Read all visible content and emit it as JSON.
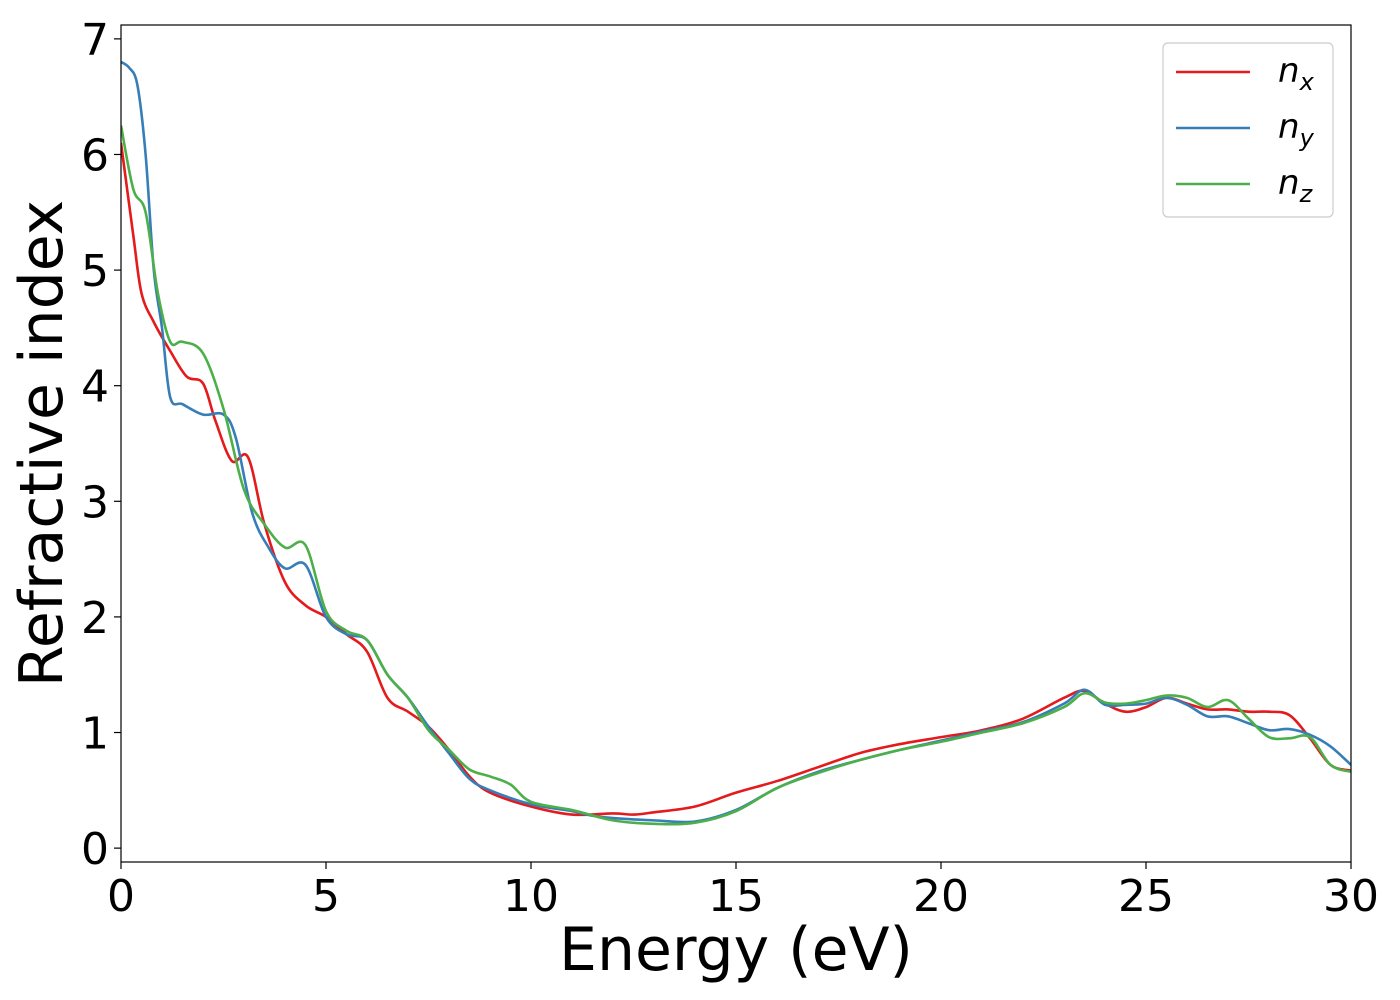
{
  "chart_data": {
    "type": "line",
    "xlabel": "Energy (eV)",
    "ylabel": "Refractive index",
    "xlim": [
      0,
      30
    ],
    "ylim": [
      -0.12,
      7.12
    ],
    "xticks": [
      0,
      5,
      10,
      15,
      20,
      25,
      30
    ],
    "yticks": [
      0,
      1,
      2,
      3,
      4,
      5,
      6,
      7
    ],
    "xtick_labels": [
      "0",
      "5",
      "10",
      "15",
      "20",
      "25",
      "30"
    ],
    "ytick_labels": [
      "0",
      "1",
      "2",
      "3",
      "4",
      "5",
      "6",
      "7"
    ],
    "grid": false,
    "legend_position": "top-right",
    "series": [
      {
        "name": "n_x",
        "label_base": "n",
        "label_sub": "x",
        "color": "#e41a1c",
        "x": [
          0,
          0.3,
          0.5,
          0.8,
          1.2,
          1.6,
          2.0,
          2.3,
          2.7,
          3.1,
          3.5,
          4.0,
          4.5,
          5.0,
          5.5,
          6.0,
          6.5,
          7.0,
          7.5,
          8.0,
          8.5,
          9.0,
          10.0,
          11.0,
          12.0,
          12.5,
          13.0,
          14.0,
          15.0,
          16.0,
          17.0,
          18.0,
          19.0,
          20.0,
          21.0,
          22.0,
          23.0,
          23.5,
          24.0,
          24.5,
          25.0,
          25.5,
          26.0,
          26.5,
          27.0,
          27.5,
          28.0,
          28.5,
          29.0,
          29.5,
          30.0
        ],
        "y": [
          6.1,
          5.3,
          4.8,
          4.55,
          4.3,
          4.08,
          4.02,
          3.7,
          3.35,
          3.38,
          2.8,
          2.3,
          2.1,
          2.0,
          1.85,
          1.7,
          1.3,
          1.18,
          1.05,
          0.85,
          0.62,
          0.48,
          0.36,
          0.29,
          0.3,
          0.29,
          0.31,
          0.36,
          0.48,
          0.58,
          0.7,
          0.82,
          0.9,
          0.96,
          1.02,
          1.12,
          1.3,
          1.36,
          1.25,
          1.18,
          1.22,
          1.3,
          1.25,
          1.2,
          1.2,
          1.18,
          1.18,
          1.15,
          0.95,
          0.72,
          0.67
        ]
      },
      {
        "name": "n_y",
        "label_base": "n",
        "label_sub": "y",
        "color": "#377eb8",
        "x": [
          0,
          0.2,
          0.4,
          0.6,
          0.8,
          1.0,
          1.2,
          1.5,
          2.0,
          2.5,
          2.8,
          3.2,
          3.6,
          4.0,
          4.5,
          5.0,
          5.5,
          6.0,
          6.5,
          7.0,
          7.5,
          8.0,
          8.5,
          9.0,
          10.0,
          11.0,
          11.5,
          12.0,
          13.0,
          14.0,
          15.0,
          16.0,
          17.0,
          18.0,
          19.0,
          20.0,
          21.0,
          22.0,
          23.0,
          23.5,
          24.0,
          24.5,
          25.0,
          25.5,
          26.0,
          26.5,
          27.0,
          27.5,
          28.0,
          28.5,
          29.0,
          29.5,
          30.0
        ],
        "y": [
          6.8,
          6.75,
          6.6,
          6.0,
          5.0,
          4.5,
          3.9,
          3.84,
          3.75,
          3.75,
          3.55,
          2.9,
          2.6,
          2.42,
          2.45,
          2.0,
          1.85,
          1.8,
          1.5,
          1.3,
          1.05,
          0.82,
          0.6,
          0.5,
          0.38,
          0.32,
          0.28,
          0.26,
          0.24,
          0.23,
          0.33,
          0.52,
          0.66,
          0.76,
          0.85,
          0.93,
          1.01,
          1.09,
          1.25,
          1.37,
          1.24,
          1.24,
          1.25,
          1.3,
          1.24,
          1.14,
          1.14,
          1.08,
          1.02,
          1.03,
          0.98,
          0.88,
          0.72
        ]
      },
      {
        "name": "n_z",
        "label_base": "n",
        "label_sub": "z",
        "color": "#4daf4a",
        "x": [
          0,
          0.3,
          0.6,
          0.9,
          1.2,
          1.5,
          2.0,
          2.5,
          3.0,
          3.5,
          4.0,
          4.5,
          5.0,
          5.5,
          6.0,
          6.5,
          7.0,
          7.5,
          8.0,
          8.5,
          9.0,
          9.5,
          10.0,
          11.0,
          12.0,
          13.0,
          14.0,
          15.0,
          16.0,
          17.0,
          18.0,
          19.0,
          20.0,
          21.0,
          22.0,
          23.0,
          23.5,
          24.0,
          24.5,
          25.0,
          25.5,
          26.0,
          26.5,
          27.0,
          27.5,
          28.0,
          28.5,
          29.0,
          29.5,
          30.0
        ],
        "y": [
          6.25,
          5.7,
          5.5,
          4.8,
          4.38,
          4.38,
          4.28,
          3.8,
          3.1,
          2.8,
          2.6,
          2.62,
          2.05,
          1.88,
          1.8,
          1.5,
          1.3,
          1.02,
          0.85,
          0.68,
          0.62,
          0.55,
          0.4,
          0.33,
          0.24,
          0.21,
          0.22,
          0.32,
          0.52,
          0.65,
          0.76,
          0.85,
          0.92,
          1.0,
          1.08,
          1.22,
          1.34,
          1.26,
          1.25,
          1.28,
          1.32,
          1.3,
          1.22,
          1.28,
          1.12,
          0.96,
          0.95,
          0.96,
          0.72,
          0.66
        ]
      }
    ]
  }
}
